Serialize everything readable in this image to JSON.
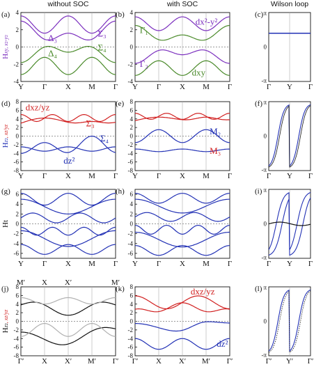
{
  "header": {
    "col_without": "without SOC",
    "col_with": "with SOC",
    "col_wilson": "Wilson loop"
  },
  "rows": [
    {
      "ylabel_parts": [
        {
          "t": "H",
          "c": "#7b2fbe",
          "s": ""
        },
        {
          "t": "xy",
          "c": "#7b2fbe",
          "s": "sub",
          "i": true
        },
        {
          "t": ", ",
          "c": "#7b2fbe",
          "s": "sub"
        },
        {
          "t": "x",
          "c": "#7b2fbe",
          "s": "sub",
          "i": true
        },
        {
          "t": "2",
          "c": "#7b2fbe",
          "s": "subsup"
        },
        {
          "t": "-",
          "c": "#7b2fbe",
          "s": "sub"
        },
        {
          "t": "y",
          "c": "#7b2fbe",
          "s": "sub",
          "i": true
        },
        {
          "t": "2",
          "c": "#7b2fbe",
          "s": "subsup"
        }
      ],
      "ylim": [
        -4,
        4
      ],
      "yticks": [
        -4,
        -2,
        0,
        2,
        4
      ],
      "kpts": [
        "Y",
        "Γ",
        "X",
        "M",
        "Γ"
      ],
      "panels": [
        {
          "label": "(a)",
          "ann": [
            {
              "text": "Δ₃",
              "x": 1.15,
              "y": 0.7,
              "c": "#7b2fbe"
            },
            {
              "text": "Δ₄",
              "x": 1.15,
              "y": -1.1,
              "c": "#4a8a2a"
            },
            {
              "text": "Σ₃",
              "x": 3.25,
              "y": 1.2,
              "c": "#7b2fbe"
            },
            {
              "text": "Σ₄",
              "x": 3.25,
              "y": -0.4,
              "c": "#4a8a2a"
            }
          ]
        },
        {
          "label": "(b)",
          "ann": [
            {
              "text": "Γ₁",
              "x": 0.2,
              "y": 1.6,
              "c": "#4a8a2a"
            },
            {
              "text": "Γ₂",
              "x": 0.2,
              "y": -2.3,
              "c": "#7b2fbe"
            },
            {
              "text": "dx²-y²",
              "x": 2.55,
              "y": 2.6,
              "c": "#7b2fbe"
            },
            {
              "text": "dxy",
              "x": 2.4,
              "y": -3.3,
              "c": "#4a8a2a"
            }
          ]
        },
        {
          "label": "(c)",
          "wilson": "flat"
        }
      ]
    },
    {
      "ylabel_parts": [
        {
          "t": "H",
          "c": "#2231b5",
          "s": ""
        },
        {
          "t": "z",
          "c": "#2231b5",
          "s": "sub",
          "i": true
        },
        {
          "t": "2",
          "c": "#2231b5",
          "s": "subsup"
        },
        {
          "t": ", ",
          "c": "#d11f1f",
          "s": "sub"
        },
        {
          "t": "xz/yz",
          "c": "#d11f1f",
          "s": "sub",
          "i": true
        }
      ],
      "ylim": [
        -8,
        8
      ],
      "yticks": [
        -8,
        -6,
        -4,
        -2,
        0,
        2,
        4,
        6,
        8
      ],
      "kpts": [
        "Y",
        "Γ",
        "X",
        "M",
        "Γ"
      ],
      "panels": [
        {
          "label": "(d)",
          "ann": [
            {
              "text": "dxz/yz",
              "x": 0.2,
              "y": 6.0,
              "c": "#d11f1f"
            },
            {
              "text": "Σ₃",
              "x": 2.75,
              "y": 2.3,
              "c": "#d11f1f"
            },
            {
              "text": "Σ₄",
              "x": 3.35,
              "y": -1.2,
              "c": "#2231b5"
            },
            {
              "text": "dz²",
              "x": 1.8,
              "y": -6.4,
              "c": "#2231b5"
            }
          ]
        },
        {
          "label": "(e)",
          "ann": [
            {
              "text": "M₂",
              "x": 3.15,
              "y": 0.4,
              "c": "#2231b5"
            },
            {
              "text": "M₃",
              "x": 3.15,
              "y": -4.1,
              "c": "#d11f1f"
            }
          ]
        },
        {
          "label": "(f)",
          "wilson": "wind1"
        }
      ]
    },
    {
      "ylabel_parts": [
        {
          "t": "Ht",
          "c": "#111111",
          "s": ""
        }
      ],
      "ylim": [
        -7,
        7
      ],
      "yticks": [
        -6,
        -4,
        -2,
        0,
        2,
        4,
        6
      ],
      "kpts": [
        "Y",
        "Γ",
        "X",
        "M",
        "Γ"
      ],
      "panels": [
        {
          "label": "(g)"
        },
        {
          "label": "(h)"
        },
        {
          "label": "(i)",
          "wilson": "wind2"
        }
      ]
    },
    {
      "ylabel_parts": [
        {
          "t": "H",
          "c": "#111111",
          "s": ""
        },
        {
          "t": "z",
          "c": "#111111",
          "s": "sub",
          "i": true
        },
        {
          "t": "2",
          "c": "#111111",
          "s": "subsup"
        },
        {
          "t": ", ",
          "c": "#d11f1f",
          "s": "sub"
        },
        {
          "t": "xz/yz",
          "c": "#d11f1f",
          "s": "sub",
          "i": true
        }
      ],
      "ylim": [
        -8,
        8
      ],
      "yticks": [
        -8,
        -6,
        -4,
        -2,
        0,
        2,
        4,
        6,
        8
      ],
      "kpts": [
        "Γ′",
        "X",
        "X′",
        "M′",
        "Γ′"
      ],
      "top_kpts": [
        "M′",
        "X",
        "X′",
        "M′"
      ],
      "panels": [
        {
          "label": "(j)"
        },
        {
          "label": "(k)",
          "ann": [
            {
              "text": "dxz/yz",
              "x": 2.35,
              "y": 6.2,
              "c": "#d11f1f"
            },
            {
              "text": "dz²",
              "x": 3.45,
              "y": -5.9,
              "c": "#2231b5"
            }
          ]
        },
        {
          "label": "(l)",
          "wilson": "wind1b"
        }
      ]
    }
  ],
  "wilson": {
    "kpts_top": [
      "Γ",
      "Y",
      "Γ"
    ],
    "kpts_bottom": [
      "Γ′",
      "Y′",
      "Γ′"
    ],
    "pi": "π",
    "mpi": "-π",
    "zero": "0"
  },
  "colors": {
    "purple": "#7b2fbe",
    "green": "#4a8a2a",
    "red": "#d11f1f",
    "blue": "#2231b5",
    "black": "#111111",
    "gray": "#b0b0b0"
  }
}
